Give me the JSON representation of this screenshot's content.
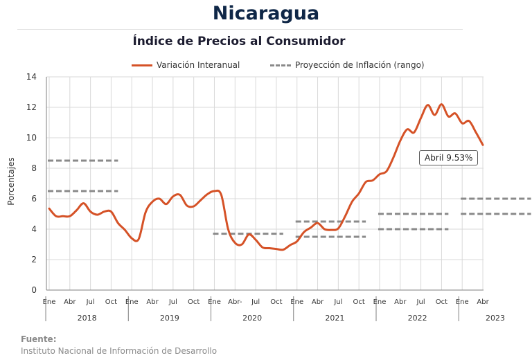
{
  "header": {
    "title": "Nicaragua",
    "subtitle": "Índice de Precios al Consumidor"
  },
  "legend": {
    "series_label": "Variación Interanual",
    "projection_label": "Proyección de Inflación (rango)"
  },
  "annotation": {
    "label": "Abril 9.53%"
  },
  "source": {
    "title": "Fuente:",
    "text": "Instituto Nacional de Información de  Desarrollo"
  },
  "colors": {
    "series": "#d55227",
    "projection": "#8a8a8a",
    "grid": "#d9d9d9",
    "axis": "#7f7f7f"
  },
  "chart_data": {
    "type": "line",
    "ylabel": "Porcentajes",
    "ylim": [
      0,
      14
    ],
    "yticks": [
      0,
      2,
      4,
      6,
      8,
      10,
      12,
      14
    ],
    "grid": true,
    "legend_position": "top",
    "x_start": "2018-01",
    "x_end": "2023-04",
    "month_ticks": [
      "Ene",
      "Abr",
      "Jul",
      "Oct",
      "Ene",
      "Abr",
      "Jul",
      "Oct",
      "Ene",
      "Abr-",
      "Jul",
      "Oct",
      "Ene",
      "Abr",
      "Jul",
      "Oct",
      "Ene",
      "Abr",
      "Jul",
      "Oct",
      "Ene",
      "Abr"
    ],
    "years": [
      "2018",
      "2019",
      "2020",
      "2021",
      "2022",
      "2023"
    ],
    "series": [
      {
        "name": "Variación Interanual",
        "x": [
          "2018-01",
          "2018-02",
          "2018-03",
          "2018-04",
          "2018-05",
          "2018-06",
          "2018-07",
          "2018-08",
          "2018-09",
          "2018-10",
          "2018-11",
          "2018-12",
          "2019-01",
          "2019-02",
          "2019-03",
          "2019-04",
          "2019-05",
          "2019-06",
          "2019-07",
          "2019-08",
          "2019-09",
          "2019-10",
          "2019-11",
          "2019-12",
          "2020-01",
          "2020-02",
          "2020-03",
          "2020-04",
          "2020-05",
          "2020-06",
          "2020-07",
          "2020-08",
          "2020-09",
          "2020-10",
          "2020-11",
          "2020-12",
          "2021-01",
          "2021-02",
          "2021-03",
          "2021-04",
          "2021-05",
          "2021-06",
          "2021-07",
          "2021-08",
          "2021-09",
          "2021-10",
          "2021-11",
          "2021-12",
          "2022-01",
          "2022-02",
          "2022-03",
          "2022-04",
          "2022-05",
          "2022-06",
          "2022-07",
          "2022-08",
          "2022-09",
          "2022-10",
          "2022-11",
          "2022-12",
          "2023-01",
          "2023-02",
          "2023-03",
          "2023-04"
        ],
        "values": [
          5.35,
          4.85,
          4.85,
          4.85,
          5.25,
          5.7,
          5.15,
          4.95,
          5.15,
          5.15,
          4.4,
          3.95,
          3.4,
          3.35,
          5.1,
          5.8,
          6.0,
          5.65,
          6.15,
          6.25,
          5.55,
          5.5,
          5.9,
          6.3,
          6.5,
          6.25,
          4.0,
          3.1,
          3.0,
          3.65,
          3.3,
          2.8,
          2.75,
          2.7,
          2.65,
          2.95,
          3.2,
          3.8,
          4.1,
          4.4,
          4.0,
          3.95,
          4.05,
          4.85,
          5.8,
          6.35,
          7.1,
          7.2,
          7.6,
          7.8,
          8.7,
          9.8,
          10.55,
          10.35,
          11.3,
          12.15,
          11.5,
          12.2,
          11.4,
          11.6,
          10.95,
          11.1,
          10.35,
          9.53
        ]
      }
    ],
    "projection_ranges": [
      {
        "year": "2018",
        "low": 6.5,
        "high": 8.5
      },
      {
        "year": "2020",
        "low": 3.7,
        "high": 3.7
      },
      {
        "year": "2021",
        "low": 3.5,
        "high": 4.5
      },
      {
        "year": "2022",
        "low": 4.0,
        "high": 5.0
      },
      {
        "year": "2023",
        "low": 5.0,
        "high": 6.0
      }
    ],
    "annotation": {
      "label": "Abril 9.53%",
      "x": "2023-04",
      "y": 9.53
    }
  }
}
